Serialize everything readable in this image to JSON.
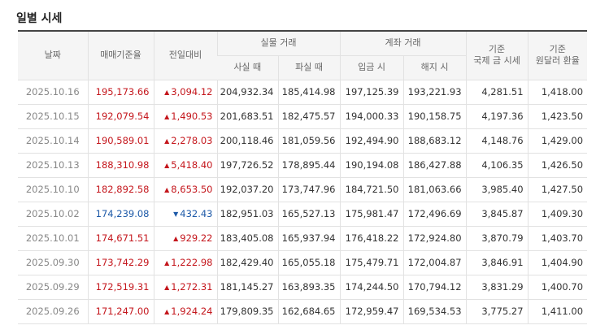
{
  "title": "일별 시세",
  "headers": {
    "date": "날짜",
    "trade_base": "매매기준율",
    "change": "전일대비",
    "cash_group": "실물 거래",
    "cash_buy": "사실 때",
    "cash_sell": "파실 때",
    "transfer_group": "계좌 거래",
    "transfer_deposit": "입금 시",
    "transfer_withdraw": "해지 시",
    "intl_gold_line1": "기준",
    "intl_gold_line2": "국제 금 시세",
    "usd_krw_line1": "기준",
    "usd_krw_line2": "원달러 환율"
  },
  "rows": [
    {
      "date": "2025.10.16",
      "trade_base": "195,173.66",
      "direction": "up",
      "change": "3,094.12",
      "cash_buy": "204,932.34",
      "cash_sell": "185,414.98",
      "deposit": "197,125.39",
      "withdraw": "193,221.93",
      "intl_gold": "4,281.51",
      "usd_krw": "1,418.00"
    },
    {
      "date": "2025.10.15",
      "trade_base": "192,079.54",
      "direction": "up",
      "change": "1,490.53",
      "cash_buy": "201,683.51",
      "cash_sell": "182,475.57",
      "deposit": "194,000.33",
      "withdraw": "190,158.75",
      "intl_gold": "4,197.36",
      "usd_krw": "1,423.50"
    },
    {
      "date": "2025.10.14",
      "trade_base": "190,589.01",
      "direction": "up",
      "change": "2,278.03",
      "cash_buy": "200,118.46",
      "cash_sell": "181,059.56",
      "deposit": "192,494.90",
      "withdraw": "188,683.12",
      "intl_gold": "4,148.76",
      "usd_krw": "1,429.00"
    },
    {
      "date": "2025.10.13",
      "trade_base": "188,310.98",
      "direction": "up",
      "change": "5,418.40",
      "cash_buy": "197,726.52",
      "cash_sell": "178,895.44",
      "deposit": "190,194.08",
      "withdraw": "186,427.88",
      "intl_gold": "4,106.35",
      "usd_krw": "1,426.50"
    },
    {
      "date": "2025.10.10",
      "trade_base": "182,892.58",
      "direction": "up",
      "change": "8,653.50",
      "cash_buy": "192,037.20",
      "cash_sell": "173,747.96",
      "deposit": "184,721.50",
      "withdraw": "181,063.66",
      "intl_gold": "3,985.40",
      "usd_krw": "1,427.50"
    },
    {
      "date": "2025.10.02",
      "trade_base": "174,239.08",
      "direction": "down",
      "change": "432.43",
      "cash_buy": "182,951.03",
      "cash_sell": "165,527.13",
      "deposit": "175,981.47",
      "withdraw": "172,496.69",
      "intl_gold": "3,845.87",
      "usd_krw": "1,409.30"
    },
    {
      "date": "2025.10.01",
      "trade_base": "174,671.51",
      "direction": "up",
      "change": "929.22",
      "cash_buy": "183,405.08",
      "cash_sell": "165,937.94",
      "deposit": "176,418.22",
      "withdraw": "172,924.80",
      "intl_gold": "3,870.79",
      "usd_krw": "1,403.70"
    },
    {
      "date": "2025.09.30",
      "trade_base": "173,742.29",
      "direction": "up",
      "change": "1,222.98",
      "cash_buy": "182,429.40",
      "cash_sell": "165,055.18",
      "deposit": "175,479.71",
      "withdraw": "172,004.87",
      "intl_gold": "3,846.91",
      "usd_krw": "1,404.90"
    },
    {
      "date": "2025.09.29",
      "trade_base": "172,519.31",
      "direction": "up",
      "change": "1,272.31",
      "cash_buy": "181,145.27",
      "cash_sell": "163,893.35",
      "deposit": "174,244.50",
      "withdraw": "170,794.12",
      "intl_gold": "3,831.29",
      "usd_krw": "1,400.70"
    },
    {
      "date": "2025.09.26",
      "trade_base": "171,247.00",
      "direction": "up",
      "change": "1,924.24",
      "cash_buy": "179,809.35",
      "cash_sell": "162,684.65",
      "deposit": "172,959.47",
      "withdraw": "169,534.53",
      "intl_gold": "3,775.27",
      "usd_krw": "1,411.00"
    }
  ],
  "colors": {
    "up": "#c4161c",
    "down": "#1e5aa8"
  },
  "icons": {
    "up": "triangle-up-icon",
    "down": "triangle-down-icon"
  }
}
